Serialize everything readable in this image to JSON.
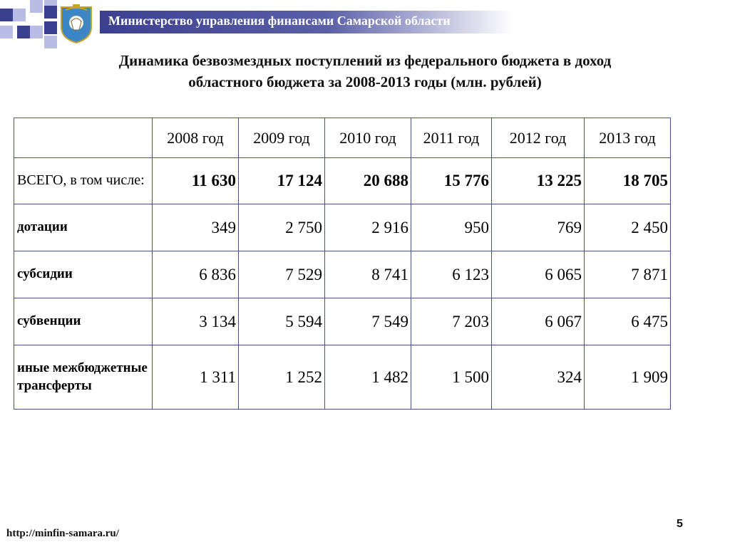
{
  "header": {
    "ministry": "Министерство управления финансами Самарской области"
  },
  "title": {
    "line1": "Динамика безвозмездных поступлений из федерального бюджета в доход",
    "line2": "областного бюджета за 2008-2013 годы (млн. рублей)"
  },
  "table": {
    "columns": [
      "2008 год",
      "2009 год",
      "2010 год",
      "2011 год",
      "2012 год",
      "2013 год"
    ],
    "rows": [
      {
        "label": "ВСЕГО, в том числе:",
        "values": [
          "11 630",
          "17 124",
          "20 688",
          "15 776",
          "13 225",
          "18 705"
        ]
      },
      {
        "label": "дотации",
        "values": [
          "349",
          "2 750",
          "2 916",
          "950",
          "769",
          "2 450"
        ]
      },
      {
        "label": "субсидии",
        "values": [
          "6 836",
          "7 529",
          "8 741",
          "6 123",
          "6 065",
          "7 871"
        ]
      },
      {
        "label": "субвенции",
        "values": [
          "3 134",
          "5 594",
          "7 549",
          "7 203",
          "6 067",
          "6 475"
        ]
      },
      {
        "label": "иные межбюджетные трансферты",
        "values": [
          "1 311",
          "1 252",
          "1 482",
          "1 500",
          "324",
          "1 909"
        ]
      }
    ]
  },
  "footer": {
    "url": "http://minfin-samara.ru/",
    "page": "5"
  },
  "colors": {
    "accent": "#3b3f8f",
    "accent_light": "#b9bde6",
    "border": "#4a4f8a"
  }
}
